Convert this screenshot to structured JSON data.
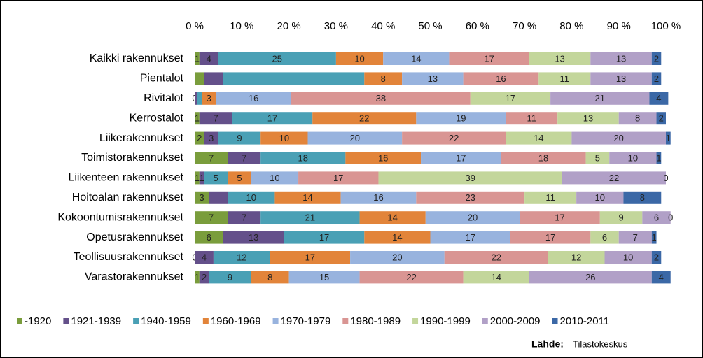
{
  "chart_data": {
    "type": "stacked-bar-horizontal",
    "categories": [
      "Kaikki rakennukset",
      "Pientalot",
      "Rivitalot",
      "Kerrostalot",
      "Liikerakennukset",
      "Toimistorakennukset",
      "Liikenteen rakennukset",
      "Hoitoalan rakennukset",
      "Kokoontumisrakennukset",
      "Opetusrakennukset",
      "Teollisuusrakennukset",
      "Varastorakennukset"
    ],
    "series": [
      {
        "name": "-1920",
        "color": "#7a9d3c",
        "values": [
          1,
          2,
          0,
          1,
          2,
          7,
          1,
          3,
          7,
          6,
          0,
          1
        ],
        "value_labels": [
          "1",
          null,
          "0",
          "1",
          "2",
          "7",
          "1",
          "3",
          "7",
          "6",
          "0",
          "1"
        ]
      },
      {
        "name": "1921-1939",
        "color": "#64508a",
        "values": [
          4,
          4,
          0.5,
          7,
          3,
          7,
          1,
          4,
          7,
          13,
          4,
          2
        ],
        "value_labels": [
          "4",
          null,
          null,
          "7",
          "3",
          "7",
          "1",
          null,
          "7",
          "13",
          "4",
          "2"
        ]
      },
      {
        "name": "1940-1959",
        "color": "#4aa0b5",
        "values": [
          25,
          30,
          1,
          17,
          9,
          18,
          5,
          10,
          21,
          17,
          12,
          9
        ],
        "value_labels": [
          "25",
          null,
          null,
          "17",
          "9",
          "18",
          "5",
          "10",
          "21",
          "17",
          "12",
          "9"
        ]
      },
      {
        "name": "1960-1969",
        "color": "#e2843a",
        "values": [
          10,
          8,
          3,
          22,
          10,
          16,
          5,
          14,
          14,
          14,
          17,
          8
        ],
        "value_labels": [
          "10",
          "8",
          "3",
          "22",
          "10",
          "16",
          "5",
          "14",
          "14",
          "14",
          "17",
          "8"
        ]
      },
      {
        "name": "1970-1979",
        "color": "#98b3de",
        "values": [
          14,
          13,
          16,
          19,
          20,
          17,
          10,
          16,
          20,
          17,
          20,
          15
        ],
        "value_labels": [
          "14",
          "13",
          "16",
          "19",
          "20",
          "17",
          "10",
          "16",
          "20",
          "17",
          "20",
          "15"
        ]
      },
      {
        "name": "1980-1989",
        "color": "#d99593",
        "values": [
          17,
          16,
          38,
          11,
          22,
          18,
          17,
          23,
          17,
          17,
          22,
          22
        ],
        "value_labels": [
          "17",
          "16",
          "38",
          "11",
          "22",
          "18",
          "17",
          "23",
          "17",
          "17",
          "22",
          "22"
        ]
      },
      {
        "name": "1990-1999",
        "color": "#c3d69b",
        "values": [
          13,
          11,
          17,
          13,
          14,
          5,
          39,
          11,
          9,
          6,
          12,
          14
        ],
        "value_labels": [
          "13",
          "11",
          "17",
          "13",
          "14",
          "5",
          "39",
          "11",
          "9",
          "6",
          "12",
          "14"
        ]
      },
      {
        "name": "2000-2009",
        "color": "#b1a0c7",
        "values": [
          13,
          13,
          21,
          8,
          20,
          10,
          22,
          10,
          6,
          7,
          10,
          26
        ],
        "value_labels": [
          "13",
          "13",
          "21",
          "8",
          "20",
          "10",
          "22",
          "10",
          "6",
          "7",
          "10",
          "26"
        ]
      },
      {
        "name": "2010-2011",
        "color": "#3b68a6",
        "values": [
          2,
          2,
          4,
          2,
          1,
          1,
          0,
          8,
          0,
          1,
          2,
          4
        ],
        "value_labels": [
          "2",
          "2",
          "4",
          "2",
          "1",
          "1",
          "0",
          "8",
          "0",
          "1",
          "2",
          "4"
        ]
      }
    ],
    "xlim": [
      0,
      100
    ],
    "xticks": [
      {
        "value": 0,
        "label": "0 %"
      },
      {
        "value": 10,
        "label": "10 %"
      },
      {
        "value": 20,
        "label": "20 %"
      },
      {
        "value": 30,
        "label": "30 %"
      },
      {
        "value": 40,
        "label": "40 %"
      },
      {
        "value": 50,
        "label": "50 %"
      },
      {
        "value": 60,
        "label": "60 %"
      },
      {
        "value": 70,
        "label": "70 %"
      },
      {
        "value": 80,
        "label": "80 %"
      },
      {
        "value": 90,
        "label": "90 %"
      },
      {
        "value": 100,
        "label": "100 %"
      }
    ],
    "source_label": "Lähde:",
    "source": "Tilastokeskus"
  }
}
